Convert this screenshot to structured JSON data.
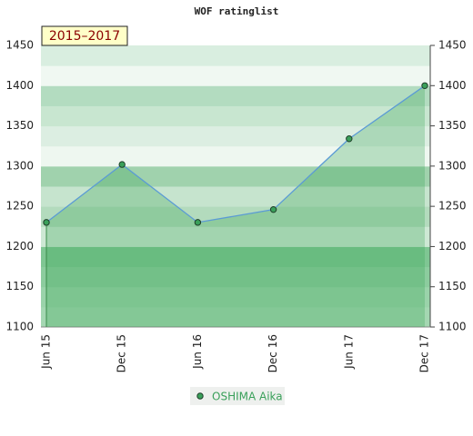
{
  "chart_data": {
    "type": "line",
    "title": "WOF ratinglist",
    "annotation": "2015–2017",
    "categories": [
      "Jun 15",
      "Dec 15",
      "Jun 16",
      "Dec 16",
      "Jun 17",
      "Dec 17"
    ],
    "series": [
      {
        "name": "OSHIMA Aika",
        "color": "#5b9bd5",
        "values": [
          1230,
          1302,
          1230,
          1246,
          1334,
          1400
        ]
      }
    ],
    "ylim": [
      1100,
      1450
    ],
    "yticks": [
      1100,
      1150,
      1200,
      1250,
      1300,
      1350,
      1400,
      1450
    ]
  }
}
